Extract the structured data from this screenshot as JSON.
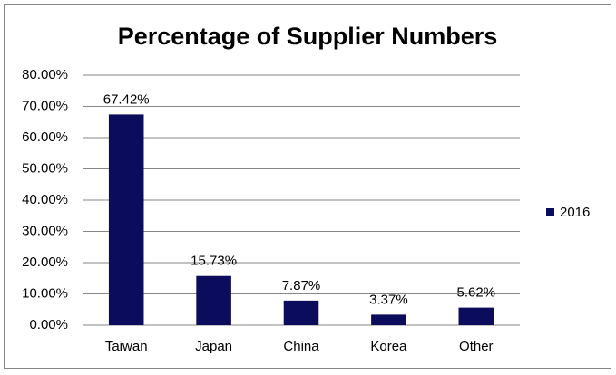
{
  "chart_data": {
    "type": "bar",
    "title": "Percentage of Supplier Numbers",
    "categories": [
      "Taiwan",
      "Japan",
      "China",
      "Korea",
      "Other"
    ],
    "series": [
      {
        "name": "2016",
        "color": "#0c0c5c",
        "values": [
          67.42,
          15.73,
          7.87,
          3.37,
          5.62
        ],
        "value_labels": [
          "67.42%",
          "15.73%",
          "7.87%",
          "3.37%",
          "5.62%"
        ]
      }
    ],
    "ylim": [
      0,
      80
    ],
    "yticks": [
      {
        "value": 0,
        "label": "0.00%"
      },
      {
        "value": 10,
        "label": "10.00%"
      },
      {
        "value": 20,
        "label": "20.00%"
      },
      {
        "value": 30,
        "label": "30.00%"
      },
      {
        "value": 40,
        "label": "40.00%"
      },
      {
        "value": 50,
        "label": "50.00%"
      },
      {
        "value": 60,
        "label": "60.00%"
      },
      {
        "value": 70,
        "label": "70.00%"
      },
      {
        "value": 80,
        "label": "80.00%"
      }
    ],
    "grid": true,
    "legend": "right"
  }
}
